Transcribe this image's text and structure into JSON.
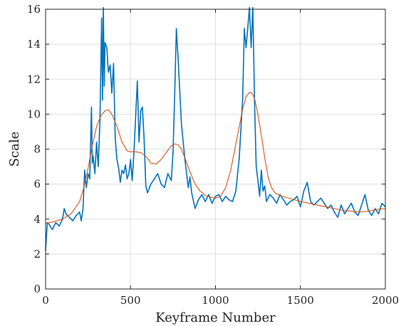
{
  "chart_data": {
    "type": "line",
    "xlabel": "Keyframe Number",
    "ylabel": "Scale",
    "xlim": [
      0,
      2000
    ],
    "ylim": [
      0,
      16
    ],
    "xticks": [
      0,
      500,
      1000,
      1500,
      2000
    ],
    "yticks": [
      0,
      2,
      4,
      6,
      8,
      10,
      12,
      14,
      16
    ],
    "grid": true,
    "series": [
      {
        "color": "#0072BD",
        "x": [
          0,
          10,
          20,
          40,
          60,
          80,
          100,
          110,
          120,
          140,
          160,
          180,
          200,
          210,
          220,
          230,
          240,
          250,
          260,
          270,
          275,
          280,
          290,
          300,
          310,
          320,
          330,
          335,
          340,
          345,
          350,
          360,
          370,
          380,
          390,
          400,
          410,
          420,
          430,
          440,
          450,
          460,
          470,
          480,
          490,
          500,
          510,
          520,
          530,
          540,
          550,
          560,
          570,
          580,
          590,
          600,
          620,
          640,
          660,
          680,
          700,
          720,
          740,
          750,
          760,
          770,
          780,
          790,
          800,
          820,
          840,
          850,
          860,
          880,
          900,
          920,
          940,
          960,
          980,
          1000,
          1020,
          1040,
          1060,
          1080,
          1100,
          1120,
          1140,
          1160,
          1170,
          1180,
          1190,
          1200,
          1210,
          1220,
          1230,
          1240,
          1250,
          1260,
          1270,
          1280,
          1290,
          1300,
          1320,
          1340,
          1360,
          1380,
          1400,
          1420,
          1440,
          1460,
          1480,
          1500,
          1520,
          1540,
          1560,
          1580,
          1600,
          1620,
          1640,
          1660,
          1680,
          1700,
          1720,
          1740,
          1760,
          1780,
          1800,
          1820,
          1840,
          1860,
          1880,
          1900,
          1920,
          1940,
          1960,
          1980,
          2000
        ],
        "y": [
          2.2,
          3.8,
          3.7,
          3.4,
          3.8,
          3.6,
          4.0,
          4.6,
          4.3,
          4.1,
          3.9,
          4.2,
          4.4,
          3.9,
          4.6,
          6.8,
          5.8,
          6.6,
          6.3,
          10.4,
          7.2,
          7.6,
          6.6,
          8.4,
          7.0,
          9.6,
          15.5,
          10.8,
          16.1,
          11.6,
          14.1,
          13.8,
          12.4,
          12.8,
          11.2,
          12.9,
          8.6,
          7.4,
          6.9,
          6.1,
          6.8,
          6.6,
          7.1,
          6.3,
          6.6,
          7.4,
          6.2,
          7.8,
          9.8,
          11.9,
          8.4,
          10.2,
          10.4,
          8.6,
          5.9,
          5.5,
          6.0,
          6.3,
          6.6,
          6.0,
          5.8,
          6.6,
          6.2,
          7.8,
          11.2,
          14.9,
          13.2,
          11.3,
          9.4,
          7.4,
          5.8,
          6.4,
          5.5,
          4.6,
          5.1,
          5.4,
          5.0,
          5.4,
          4.9,
          5.3,
          5.4,
          5.0,
          5.3,
          5.1,
          5.0,
          5.6,
          7.5,
          10.9,
          14.9,
          13.8,
          14.9,
          16.1,
          13.8,
          16.1,
          10.6,
          7.0,
          6.2,
          5.3,
          6.8,
          5.6,
          5.9,
          5.0,
          5.4,
          5.2,
          4.9,
          5.4,
          5.1,
          4.8,
          5.0,
          5.1,
          5.3,
          4.7,
          5.6,
          6.1,
          5.0,
          4.8,
          5.0,
          5.2,
          4.9,
          4.6,
          4.8,
          4.4,
          4.1,
          4.8,
          4.3,
          4.6,
          4.9,
          4.4,
          4.2,
          4.8,
          5.4,
          4.5,
          4.2,
          4.6,
          4.3,
          4.9,
          4.7
        ]
      },
      {
        "color": "#D95319",
        "x": [
          0,
          50,
          100,
          150,
          200,
          225,
          250,
          275,
          300,
          325,
          350,
          370,
          390,
          420,
          450,
          480,
          500,
          530,
          560,
          590,
          620,
          650,
          680,
          710,
          740,
          760,
          780,
          800,
          820,
          850,
          880,
          910,
          940,
          970,
          1000,
          1030,
          1060,
          1090,
          1120,
          1140,
          1160,
          1180,
          1200,
          1215,
          1230,
          1250,
          1270,
          1290,
          1310,
          1330,
          1350,
          1380,
          1410,
          1450,
          1500,
          1550,
          1600,
          1650,
          1700,
          1750,
          1800,
          1850,
          1900,
          1950,
          2000
        ],
        "y": [
          3.75,
          3.85,
          4.0,
          4.3,
          5.0,
          5.8,
          6.9,
          8.2,
          9.3,
          9.9,
          10.2,
          10.25,
          10.0,
          9.3,
          8.4,
          7.9,
          7.85,
          7.85,
          7.8,
          7.6,
          7.2,
          7.15,
          7.4,
          7.8,
          8.2,
          8.3,
          8.25,
          8.0,
          7.5,
          6.7,
          6.0,
          5.6,
          5.35,
          5.25,
          5.2,
          5.3,
          5.8,
          6.8,
          8.3,
          9.3,
          10.3,
          11.0,
          11.25,
          11.2,
          10.9,
          10.0,
          8.8,
          7.5,
          6.4,
          5.8,
          5.5,
          5.35,
          5.25,
          5.15,
          5.0,
          4.9,
          4.8,
          4.7,
          4.6,
          4.5,
          4.45,
          4.4,
          4.45,
          4.55,
          4.6
        ]
      }
    ]
  }
}
